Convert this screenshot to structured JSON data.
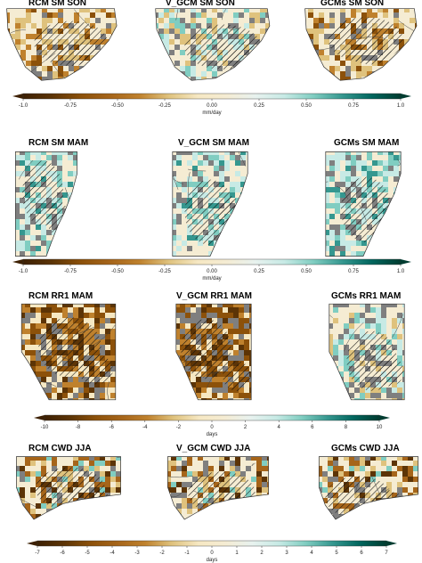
{
  "figure": {
    "rows": [
      {
        "titles": [
          "RCM SM SON",
          "V_GCM SM SON",
          "GCMs SM SON"
        ],
        "region": "southern-africa",
        "colorbar": {
          "ticks": [
            "-1.0",
            "-0.75",
            "-0.50",
            "-0.25",
            "0.00",
            "0.25",
            "0.50",
            "0.75",
            "1.0"
          ],
          "unit": "mm/day"
        }
      },
      {
        "titles": [
          "RCM SM MAM",
          "V_GCM SM MAM",
          "GCMs SM MAM"
        ],
        "region": "east-africa",
        "colorbar": {
          "ticks": [
            "-1.0",
            "-0.75",
            "-0.50",
            "-0.25",
            "0.00",
            "0.25",
            "0.50",
            "0.75",
            "1.0"
          ],
          "unit": "mm/day"
        }
      },
      {
        "titles": [
          "RCM RR1 MAM",
          "V_GCM RR1 MAM",
          "GCMs RR1 MAM"
        ],
        "region": "central-africa",
        "colorbar": {
          "ticks": [
            "-10",
            "-8",
            "-6",
            "-4",
            "-2",
            "0",
            "2",
            "4",
            "6",
            "8",
            "10"
          ],
          "unit": "days"
        }
      },
      {
        "titles": [
          "RCM CWD JJA",
          "V_GCM CWD JJA",
          "GCMs CWD JJA"
        ],
        "region": "west-africa",
        "colorbar": {
          "ticks": [
            "-7",
            "-6",
            "-5",
            "-4",
            "-3",
            "-2",
            "-1",
            "0",
            "1",
            "2",
            "3",
            "4",
            "5",
            "6",
            "7"
          ],
          "unit": "days"
        }
      }
    ]
  },
  "colors": {
    "dry_strong": "#5c3406",
    "dry_mid": "#a6651a",
    "dry_light": "#dfc27d",
    "neutral": "#f5ecd3",
    "wet_light": "#80cdc1",
    "wet_mid": "#35978f",
    "wet_strong": "#01665e",
    "wet_darkest": "#003c30",
    "missing": "#7f7f7f"
  }
}
